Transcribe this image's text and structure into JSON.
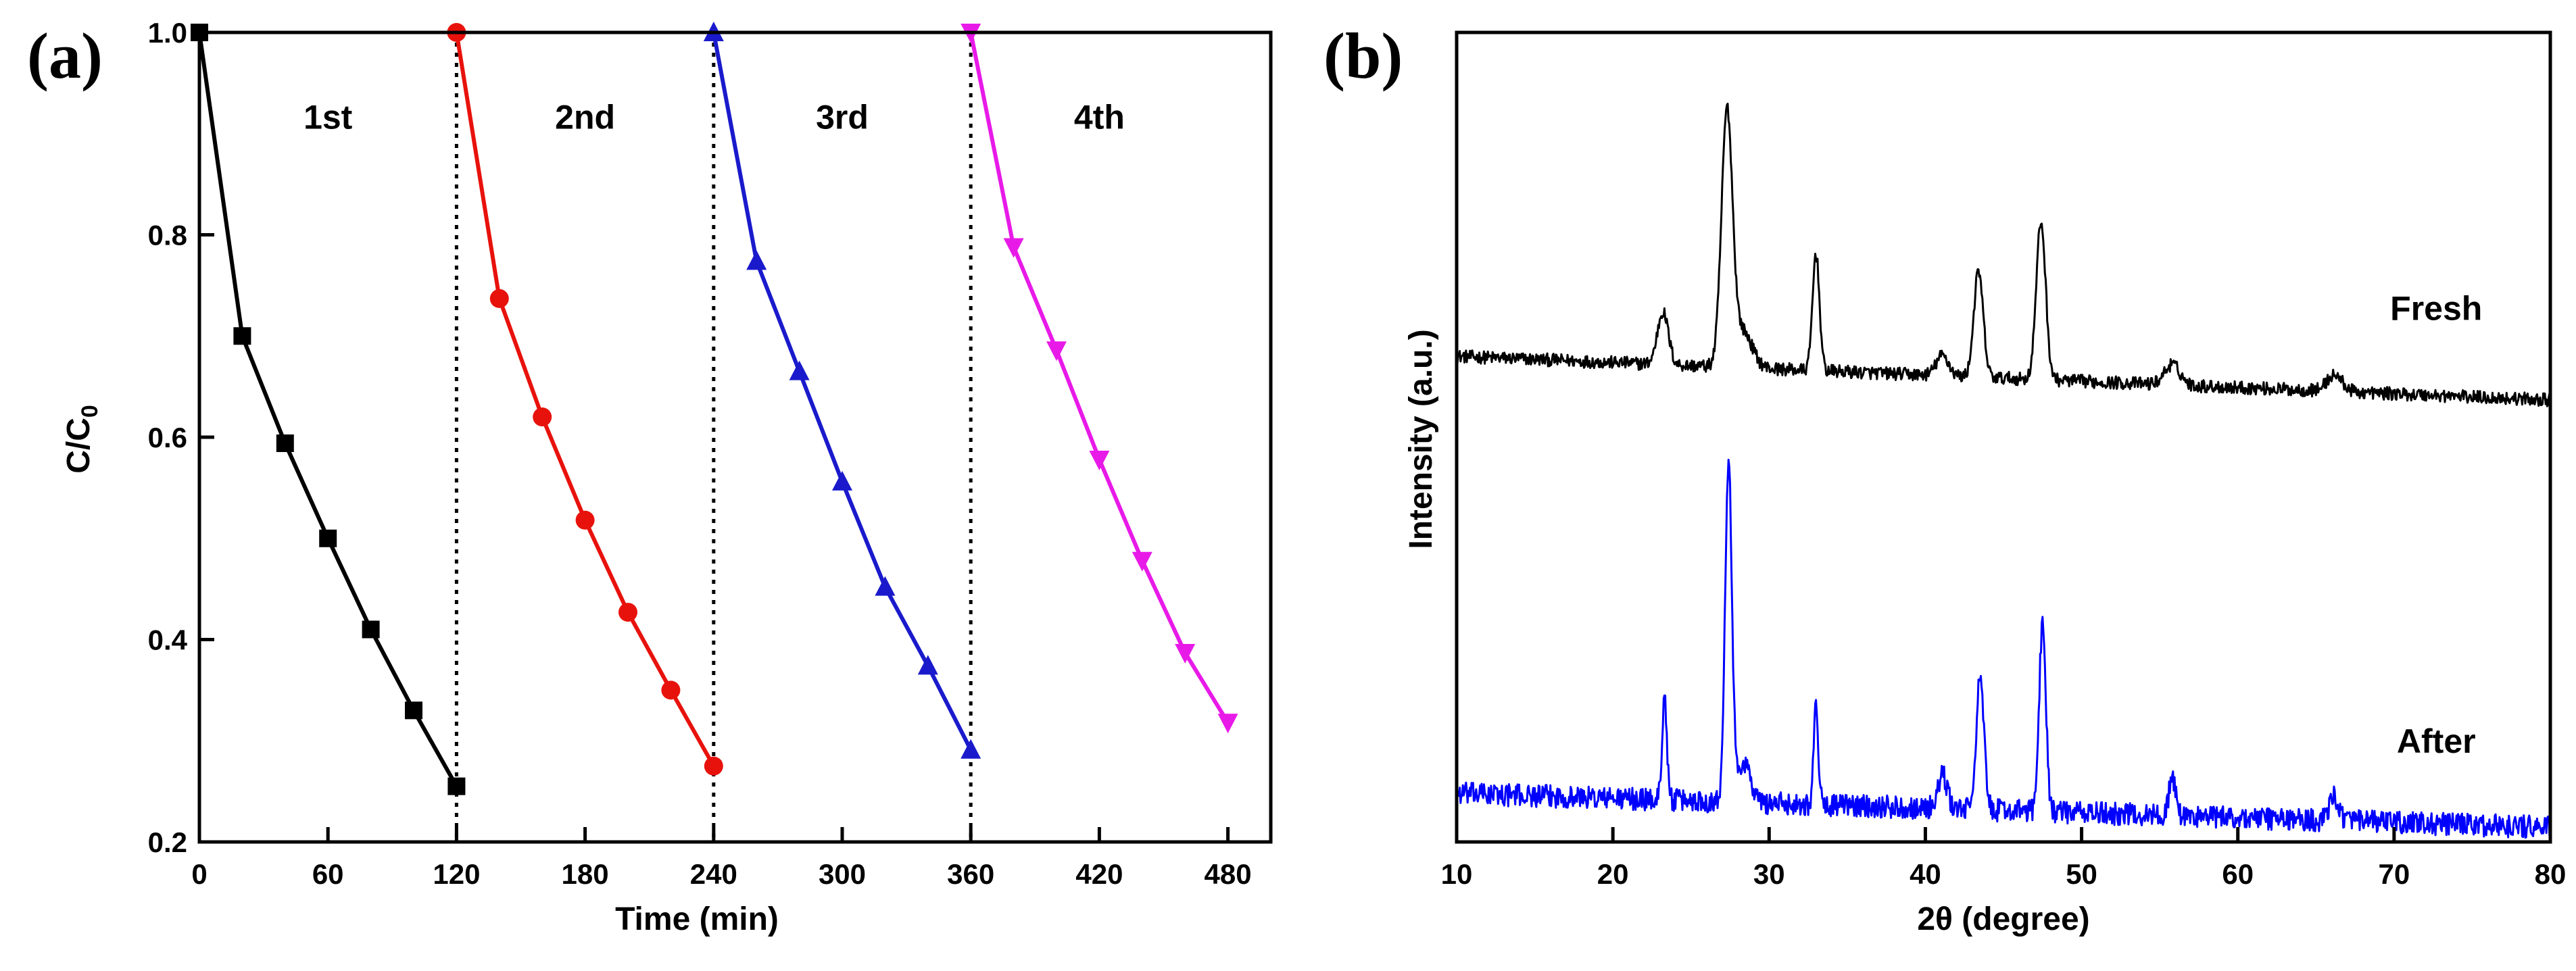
{
  "chart_data": [
    {
      "panel_label": "(a)",
      "type": "line",
      "xlabel": "Time (min)",
      "ylabel": {
        "base": "C/C",
        "subscript": "0"
      },
      "xlim": [
        0,
        500
      ],
      "ylim": [
        0.2,
        1.0
      ],
      "xticks": [
        0,
        60,
        120,
        180,
        240,
        300,
        360,
        420,
        480
      ],
      "yticks": [
        0.2,
        0.4,
        0.6,
        0.8,
        1.0
      ],
      "ytick_labels": [
        "0.2",
        "0.4",
        "0.6",
        "0.8",
        "1.0"
      ],
      "cycle_dividers": [
        120,
        240,
        360
      ],
      "series": [
        {
          "name": "1st",
          "color": "#000000",
          "marker": "square",
          "x": [
            0,
            20,
            40,
            60,
            80,
            100,
            120
          ],
          "y": [
            1.0,
            0.7,
            0.594,
            0.5,
            0.41,
            0.33,
            0.255
          ],
          "label_x": 60,
          "label_y": 0.905
        },
        {
          "name": "2nd",
          "color": "#e8120c",
          "marker": "circle",
          "x": [
            120,
            140,
            160,
            180,
            200,
            220,
            240
          ],
          "y": [
            1.0,
            0.737,
            0.62,
            0.518,
            0.427,
            0.35,
            0.275
          ],
          "label_x": 180,
          "label_y": 0.905
        },
        {
          "name": "3rd",
          "color": "#1a1acc",
          "marker": "triangle-up",
          "x": [
            240,
            260,
            280,
            300,
            320,
            340,
            360
          ],
          "y": [
            1.0,
            0.774,
            0.665,
            0.556,
            0.452,
            0.374,
            0.291
          ],
          "label_x": 300,
          "label_y": 0.905
        },
        {
          "name": "4th",
          "color": "#e81ae8",
          "marker": "triangle-down",
          "x": [
            360,
            380,
            400,
            420,
            440,
            460,
            480
          ],
          "y": [
            1.0,
            0.788,
            0.686,
            0.578,
            0.478,
            0.387,
            0.318
          ],
          "label_x": 420,
          "label_y": 0.905
        }
      ]
    },
    {
      "panel_label": "(b)",
      "type": "line",
      "xlabel": "2θ (degree)",
      "ylabel": "Intensity (a.u.)",
      "xlim": [
        10,
        80
      ],
      "ylim": [
        0,
        1.0
      ],
      "xticks": [
        10,
        20,
        30,
        40,
        50,
        60,
        70,
        80
      ],
      "yticks_shown": false,
      "series": [
        {
          "name": "Fresh",
          "color": "#000000",
          "baseline_start": 0.6,
          "baseline_end": 0.546,
          "noise": 0.008,
          "peaks": [
            {
              "x": 23.2,
              "h": 0.065,
              "w": 0.35
            },
            {
              "x": 27.3,
              "h": 0.31,
              "w": 0.35
            },
            {
              "x": 28.3,
              "h": 0.045,
              "w": 0.6
            },
            {
              "x": 33.0,
              "h": 0.145,
              "w": 0.22
            },
            {
              "x": 41.1,
              "h": 0.025,
              "w": 0.4
            },
            {
              "x": 43.4,
              "h": 0.13,
              "w": 0.3
            },
            {
              "x": 47.4,
              "h": 0.195,
              "w": 0.3
            },
            {
              "x": 55.8,
              "h": 0.025,
              "w": 0.5
            },
            {
              "x": 66.2,
              "h": 0.02,
              "w": 0.5
            }
          ],
          "label": "Fresh",
          "label_x": 72.7,
          "label_y": 0.645
        },
        {
          "name": "After",
          "color": "#0000ff",
          "baseline_start": 0.06,
          "baseline_end": 0.018,
          "noise": 0.014,
          "peaks": [
            {
              "x": 23.3,
              "h": 0.13,
              "w": 0.15
            },
            {
              "x": 27.4,
              "h": 0.42,
              "w": 0.22
            },
            {
              "x": 28.4,
              "h": 0.05,
              "w": 0.4
            },
            {
              "x": 33.0,
              "h": 0.12,
              "w": 0.15
            },
            {
              "x": 41.1,
              "h": 0.04,
              "w": 0.3
            },
            {
              "x": 43.5,
              "h": 0.16,
              "w": 0.25
            },
            {
              "x": 47.5,
              "h": 0.23,
              "w": 0.22
            },
            {
              "x": 55.8,
              "h": 0.05,
              "w": 0.2
            },
            {
              "x": 66.2,
              "h": 0.03,
              "w": 0.3
            }
          ],
          "label": "After",
          "label_x": 72.7,
          "label_y": 0.11
        }
      ]
    }
  ]
}
